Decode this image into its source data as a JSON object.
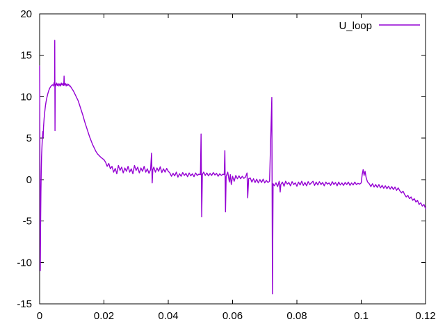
{
  "colors": {
    "background": "#ffffff",
    "border": "#000000",
    "text": "#000000",
    "series_purple": "#9400d3"
  },
  "legend": {
    "entries": [
      "U_loop"
    ],
    "position": "top-right"
  },
  "chart_data": {
    "type": "line",
    "title": "",
    "xlabel": "",
    "ylabel": "",
    "xlim": [
      0,
      0.12
    ],
    "ylim": [
      -15,
      20
    ],
    "x_tick_values": [
      0,
      0.02,
      0.04,
      0.06,
      0.08,
      0.1,
      0.12
    ],
    "x_tick_labels": [
      "0",
      "0.02",
      "0.04",
      "0.06",
      "0.08",
      "0.1",
      "0.12"
    ],
    "y_tick_values": [
      -15,
      -10,
      -5,
      0,
      5,
      10,
      15,
      20
    ],
    "y_tick_labels": [
      "-15",
      "-10",
      "-5",
      "0",
      "5",
      "10",
      "15",
      "20"
    ],
    "grid": false,
    "tick_style": "inward-mirrored",
    "legend_position": "top-right",
    "series": [
      {
        "name": "U_loop",
        "color": "#9400d3",
        "points": [
          [
            0,
            13.7
          ],
          [
            5e-05,
            9
          ],
          [
            0.0001,
            2
          ],
          [
            0.00015,
            -7
          ],
          [
            0.0002,
            -11
          ],
          [
            0.0003,
            -5.5
          ],
          [
            0.0004,
            -1.5
          ],
          [
            0.0005,
            1
          ],
          [
            0.0006,
            2.8
          ],
          [
            0.0008,
            4.6
          ],
          [
            0.001,
            5.8
          ],
          [
            0.0011,
            5.1
          ],
          [
            0.0012,
            6.3
          ],
          [
            0.0014,
            7.4
          ],
          [
            0.0016,
            8.2
          ],
          [
            0.0018,
            8.9
          ],
          [
            0.002,
            9.4
          ],
          [
            0.0022,
            9.8
          ],
          [
            0.0025,
            10.3
          ],
          [
            0.0028,
            10.7
          ],
          [
            0.0031,
            11
          ],
          [
            0.0034,
            11.2
          ],
          [
            0.0037,
            11.35
          ],
          [
            0.004,
            11.45
          ],
          [
            0.00425,
            11.3
          ],
          [
            0.0045,
            11.7
          ],
          [
            0.00465,
            11.4
          ],
          [
            0.0047,
            16.8
          ],
          [
            0.00478,
            5.9
          ],
          [
            0.00485,
            11.5
          ],
          [
            0.005,
            11.3
          ],
          [
            0.00525,
            11.65
          ],
          [
            0.0055,
            11.35
          ],
          [
            0.00575,
            11.6
          ],
          [
            0.006,
            11.3
          ],
          [
            0.00625,
            11.55
          ],
          [
            0.0065,
            11.3
          ],
          [
            0.00675,
            11.65
          ],
          [
            0.007,
            11.4
          ],
          [
            0.00725,
            11.6
          ],
          [
            0.0075,
            11.35
          ],
          [
            0.0076,
            12.5
          ],
          [
            0.0077,
            11.4
          ],
          [
            0.008,
            11.6
          ],
          [
            0.00825,
            11.3
          ],
          [
            0.0085,
            11.55
          ],
          [
            0.00875,
            11.35
          ],
          [
            0.009,
            11.5
          ],
          [
            0.00925,
            11.3
          ],
          [
            0.0095,
            11.3
          ],
          [
            0.01,
            11
          ],
          [
            0.0105,
            10.7
          ],
          [
            0.011,
            10.3
          ],
          [
            0.0115,
            9.9
          ],
          [
            0.012,
            9.5
          ],
          [
            0.0125,
            8.9
          ],
          [
            0.013,
            8.3
          ],
          [
            0.0135,
            7.7
          ],
          [
            0.014,
            7
          ],
          [
            0.0145,
            6.4
          ],
          [
            0.015,
            5.8
          ],
          [
            0.0155,
            5.2
          ],
          [
            0.016,
            4.7
          ],
          [
            0.0165,
            4.2
          ],
          [
            0.017,
            3.8
          ],
          [
            0.0175,
            3.4
          ],
          [
            0.018,
            3.1
          ],
          [
            0.0185,
            2.9
          ],
          [
            0.019,
            2.7
          ],
          [
            0.0195,
            2.55
          ],
          [
            0.02,
            2.4
          ],
          [
            0.0205,
            2.1
          ],
          [
            0.021,
            1.6
          ],
          [
            0.0215,
            1.95
          ],
          [
            0.022,
            1.3
          ],
          [
            0.0225,
            1.6
          ],
          [
            0.023,
            0.9
          ],
          [
            0.0235,
            1.35
          ],
          [
            0.024,
            0.7
          ],
          [
            0.0245,
            1.7
          ],
          [
            0.025,
            1.1
          ],
          [
            0.0255,
            1.5
          ],
          [
            0.026,
            0.8
          ],
          [
            0.0265,
            1.4
          ],
          [
            0.027,
            1
          ],
          [
            0.0275,
            1.6
          ],
          [
            0.028,
            0.9
          ],
          [
            0.0285,
            1.3
          ],
          [
            0.029,
            0.7
          ],
          [
            0.0295,
            1.7
          ],
          [
            0.03,
            1.1
          ],
          [
            0.0305,
            1.5
          ],
          [
            0.031,
            0.8
          ],
          [
            0.0315,
            1.4
          ],
          [
            0.032,
            1
          ],
          [
            0.0325,
            1.6
          ],
          [
            0.033,
            0.9
          ],
          [
            0.0335,
            1.3
          ],
          [
            0.034,
            0.75
          ],
          [
            0.0345,
            1.2
          ],
          [
            0.0348,
            3.2
          ],
          [
            0.035,
            -0.4
          ],
          [
            0.0352,
            1.2
          ],
          [
            0.0355,
            1.5
          ],
          [
            0.036,
            0.9
          ],
          [
            0.0365,
            1.4
          ],
          [
            0.037,
            1
          ],
          [
            0.0375,
            1.55
          ],
          [
            0.038,
            0.85
          ],
          [
            0.0385,
            1.3
          ],
          [
            0.039,
            0.9
          ],
          [
            0.0395,
            1.35
          ],
          [
            0.04,
            1
          ],
          [
            0.0405,
            0.8
          ],
          [
            0.041,
            0.4
          ],
          [
            0.0415,
            0.75
          ],
          [
            0.042,
            0.45
          ],
          [
            0.0425,
            0.9
          ],
          [
            0.043,
            0.3
          ],
          [
            0.0435,
            0.7
          ],
          [
            0.044,
            0.4
          ],
          [
            0.0445,
            0.85
          ],
          [
            0.045,
            0.5
          ],
          [
            0.0455,
            0.75
          ],
          [
            0.046,
            0.35
          ],
          [
            0.0465,
            0.8
          ],
          [
            0.047,
            0.45
          ],
          [
            0.0475,
            0.7
          ],
          [
            0.048,
            0.35
          ],
          [
            0.0485,
            0.8
          ],
          [
            0.049,
            0.5
          ],
          [
            0.0495,
            0.65
          ],
          [
            0.05,
            0.6
          ],
          [
            0.0502,
            5.5
          ],
          [
            0.0504,
            -4.5
          ],
          [
            0.0506,
            0.6
          ],
          [
            0.051,
            0.9
          ],
          [
            0.0515,
            0.5
          ],
          [
            0.052,
            0.8
          ],
          [
            0.0525,
            0.45
          ],
          [
            0.053,
            0.75
          ],
          [
            0.0535,
            0.5
          ],
          [
            0.054,
            0.85
          ],
          [
            0.0545,
            0.55
          ],
          [
            0.055,
            0.75
          ],
          [
            0.0555,
            0.4
          ],
          [
            0.056,
            0.7
          ],
          [
            0.0565,
            0.5
          ],
          [
            0.057,
            0.65
          ],
          [
            0.0574,
            0.6
          ],
          [
            0.0576,
            3.5
          ],
          [
            0.0578,
            -3.9
          ],
          [
            0.058,
            0.4
          ],
          [
            0.0585,
            0.9
          ],
          [
            0.059,
            -0.3
          ],
          [
            0.0593,
            0.6
          ],
          [
            0.0596,
            -0.6
          ],
          [
            0.06,
            0.4
          ],
          [
            0.0605,
            -0.2
          ],
          [
            0.061,
            0.5
          ],
          [
            0.0615,
            0.1
          ],
          [
            0.062,
            0.45
          ],
          [
            0.0625,
            0.1
          ],
          [
            0.063,
            0.4
          ],
          [
            0.0635,
            0.15
          ],
          [
            0.064,
            0.3
          ],
          [
            0.0645,
            0.8
          ],
          [
            0.0647,
            -2.2
          ],
          [
            0.065,
            0.1
          ],
          [
            0.0655,
            0.2
          ],
          [
            0.066,
            -0.3
          ],
          [
            0.0665,
            0.1
          ],
          [
            0.067,
            -0.35
          ],
          [
            0.0675,
            0.05
          ],
          [
            0.068,
            -0.4
          ],
          [
            0.0685,
            0
          ],
          [
            0.069,
            -0.35
          ],
          [
            0.0695,
            0.05
          ],
          [
            0.07,
            -0.4
          ],
          [
            0.0705,
            -0.1
          ],
          [
            0.071,
            -0.35
          ],
          [
            0.0715,
            -0.2
          ],
          [
            0.0722,
            9.9
          ],
          [
            0.0724,
            -13.8
          ],
          [
            0.0726,
            -0.5
          ],
          [
            0.073,
            -0.75
          ],
          [
            0.0735,
            -0.4
          ],
          [
            0.074,
            -0.85
          ],
          [
            0.0745,
            -0.2
          ],
          [
            0.0748,
            -1.5
          ],
          [
            0.075,
            -0.6
          ],
          [
            0.0755,
            -0.3
          ],
          [
            0.076,
            -0.8
          ],
          [
            0.0765,
            -0.2
          ],
          [
            0.077,
            -0.55
          ],
          [
            0.0775,
            -0.35
          ],
          [
            0.078,
            -0.75
          ],
          [
            0.0785,
            -0.25
          ],
          [
            0.079,
            -0.6
          ],
          [
            0.0795,
            -0.4
          ],
          [
            0.08,
            -0.8
          ],
          [
            0.0805,
            -0.3
          ],
          [
            0.081,
            -0.65
          ],
          [
            0.0815,
            -0.2
          ],
          [
            0.082,
            -0.7
          ],
          [
            0.0825,
            -0.35
          ],
          [
            0.083,
            -0.75
          ],
          [
            0.0835,
            -0.25
          ],
          [
            0.084,
            -0.6
          ],
          [
            0.0845,
            -0.4
          ],
          [
            0.085,
            -0.2
          ],
          [
            0.0855,
            -0.7
          ],
          [
            0.086,
            -0.3
          ],
          [
            0.0865,
            -0.65
          ],
          [
            0.087,
            -0.25
          ],
          [
            0.0875,
            -0.6
          ],
          [
            0.088,
            -0.35
          ],
          [
            0.0885,
            -0.75
          ],
          [
            0.089,
            -0.3
          ],
          [
            0.0895,
            -0.55
          ],
          [
            0.09,
            -0.4
          ],
          [
            0.0905,
            -0.7
          ],
          [
            0.091,
            -0.25
          ],
          [
            0.0915,
            -0.6
          ],
          [
            0.092,
            -0.35
          ],
          [
            0.0925,
            -0.75
          ],
          [
            0.093,
            -0.3
          ],
          [
            0.0935,
            -0.65
          ],
          [
            0.094,
            -0.4
          ],
          [
            0.0945,
            -0.7
          ],
          [
            0.095,
            -0.35
          ],
          [
            0.0955,
            -0.6
          ],
          [
            0.096,
            -0.3
          ],
          [
            0.0965,
            -0.7
          ],
          [
            0.097,
            -0.4
          ],
          [
            0.0975,
            -0.65
          ],
          [
            0.098,
            -0.3
          ],
          [
            0.0985,
            -0.6
          ],
          [
            0.099,
            -0.45
          ],
          [
            0.0995,
            -0.55
          ],
          [
            0.1,
            -0.4
          ],
          [
            0.1003,
            0.6
          ],
          [
            0.1006,
            1.2
          ],
          [
            0.1009,
            0.5
          ],
          [
            0.1012,
            1
          ],
          [
            0.1015,
            0.3
          ],
          [
            0.1018,
            -0.1
          ],
          [
            0.102,
            -0.3
          ],
          [
            0.1025,
            -0.5
          ],
          [
            0.103,
            -0.85
          ],
          [
            0.1035,
            -0.5
          ],
          [
            0.104,
            -0.9
          ],
          [
            0.1045,
            -0.6
          ],
          [
            0.105,
            -0.95
          ],
          [
            0.1055,
            -0.6
          ],
          [
            0.106,
            -1
          ],
          [
            0.1065,
            -0.7
          ],
          [
            0.107,
            -1.05
          ],
          [
            0.1075,
            -0.75
          ],
          [
            0.108,
            -1.1
          ],
          [
            0.1085,
            -0.8
          ],
          [
            0.109,
            -1.15
          ],
          [
            0.1095,
            -0.85
          ],
          [
            0.11,
            -1.2
          ],
          [
            0.1105,
            -0.9
          ],
          [
            0.111,
            -1.3
          ],
          [
            0.1115,
            -1
          ],
          [
            0.112,
            -1.35
          ],
          [
            0.1125,
            -1.6
          ],
          [
            0.113,
            -1.4
          ],
          [
            0.1135,
            -1.8
          ],
          [
            0.114,
            -2.1
          ],
          [
            0.1145,
            -1.9
          ],
          [
            0.115,
            -2.3
          ],
          [
            0.1155,
            -2.1
          ],
          [
            0.116,
            -2.5
          ],
          [
            0.1165,
            -2.3
          ],
          [
            0.117,
            -2.7
          ],
          [
            0.1175,
            -2.5
          ],
          [
            0.118,
            -3
          ],
          [
            0.1185,
            -2.8
          ],
          [
            0.119,
            -3.2
          ],
          [
            0.1195,
            -3
          ],
          [
            0.12,
            -3.5
          ]
        ]
      }
    ]
  }
}
